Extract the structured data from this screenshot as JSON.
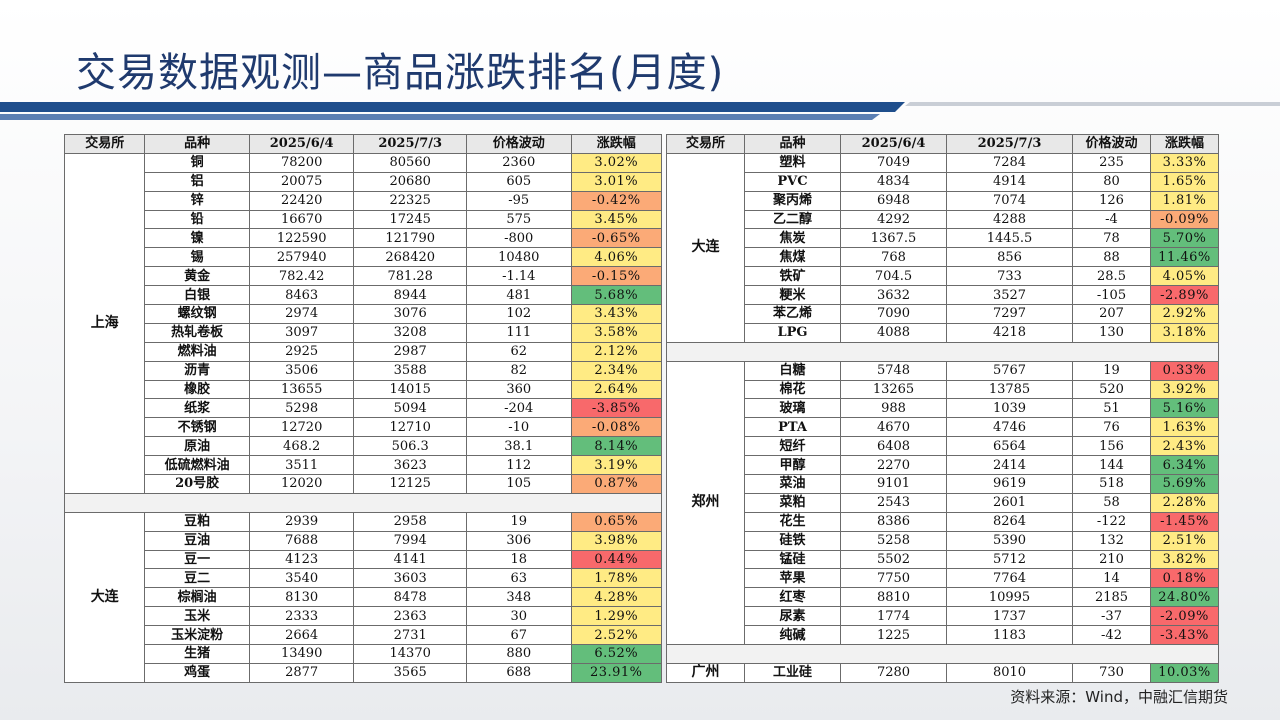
{
  "title": "交易数据观测—商品涨跌排名(月度)",
  "headers": [
    "交易所",
    "品种",
    "2025/6/4",
    "2025/7/3",
    "价格波动",
    "涨跌幅"
  ],
  "source": "资料来源：Wind，中融汇信期货",
  "colors": {
    "title": "#1f3a6e",
    "strong_up": "#63be7b",
    "weak_up": "#ffeb84",
    "weak_down": "#fbaa77",
    "strong_down": "#f8696b"
  },
  "left": {
    "groups": [
      {
        "exchange": "上海",
        "rows": [
          {
            "name": "铜",
            "d1": "78200",
            "d2": "80560",
            "chg": "2360",
            "pct": "3.02%",
            "v": 3.02
          },
          {
            "name": "铝",
            "d1": "20075",
            "d2": "20680",
            "chg": "605",
            "pct": "3.01%",
            "v": 3.01
          },
          {
            "name": "锌",
            "d1": "22420",
            "d2": "22325",
            "chg": "-95",
            "pct": "-0.42%",
            "v": -0.42
          },
          {
            "name": "铅",
            "d1": "16670",
            "d2": "17245",
            "chg": "575",
            "pct": "3.45%",
            "v": 3.45
          },
          {
            "name": "镍",
            "d1": "122590",
            "d2": "121790",
            "chg": "-800",
            "pct": "-0.65%",
            "v": -0.65
          },
          {
            "name": "锡",
            "d1": "257940",
            "d2": "268420",
            "chg": "10480",
            "pct": "4.06%",
            "v": 4.06
          },
          {
            "name": "黄金",
            "d1": "782.42",
            "d2": "781.28",
            "chg": "-1.14",
            "pct": "-0.15%",
            "v": -0.15
          },
          {
            "name": "白银",
            "d1": "8463",
            "d2": "8944",
            "chg": "481",
            "pct": "5.68%",
            "v": 5.68
          },
          {
            "name": "螺纹钢",
            "d1": "2974",
            "d2": "3076",
            "chg": "102",
            "pct": "3.43%",
            "v": 3.43
          },
          {
            "name": "热轧卷板",
            "d1": "3097",
            "d2": "3208",
            "chg": "111",
            "pct": "3.58%",
            "v": 3.58
          },
          {
            "name": "燃料油",
            "d1": "2925",
            "d2": "2987",
            "chg": "62",
            "pct": "2.12%",
            "v": 2.12
          },
          {
            "name": "沥青",
            "d1": "3506",
            "d2": "3588",
            "chg": "82",
            "pct": "2.34%",
            "v": 2.34
          },
          {
            "name": "橡胶",
            "d1": "13655",
            "d2": "14015",
            "chg": "360",
            "pct": "2.64%",
            "v": 2.64
          },
          {
            "name": "纸浆",
            "d1": "5298",
            "d2": "5094",
            "chg": "-204",
            "pct": "-3.85%",
            "v": -3.85
          },
          {
            "name": "不锈钢",
            "d1": "12720",
            "d2": "12710",
            "chg": "-10",
            "pct": "-0.08%",
            "v": -0.08
          },
          {
            "name": "原油",
            "d1": "468.2",
            "d2": "506.3",
            "chg": "38.1",
            "pct": "8.14%",
            "v": 8.14
          },
          {
            "name": "低硫燃料油",
            "d1": "3511",
            "d2": "3623",
            "chg": "112",
            "pct": "3.19%",
            "v": 3.19
          },
          {
            "name": "20号胶",
            "d1": "12020",
            "d2": "12125",
            "chg": "105",
            "pct": "0.87%",
            "v": 0.87
          }
        ]
      },
      {
        "blank": true
      },
      {
        "exchange": "大连",
        "rows": [
          {
            "name": "豆粕",
            "d1": "2939",
            "d2": "2958",
            "chg": "19",
            "pct": "0.65%",
            "v": 0.65
          },
          {
            "name": "豆油",
            "d1": "7688",
            "d2": "7994",
            "chg": "306",
            "pct": "3.98%",
            "v": 3.98
          },
          {
            "name": "豆一",
            "d1": "4123",
            "d2": "4141",
            "chg": "18",
            "pct": "0.44%",
            "v": 0.44
          },
          {
            "name": "豆二",
            "d1": "3540",
            "d2": "3603",
            "chg": "63",
            "pct": "1.78%",
            "v": 1.78
          },
          {
            "name": "棕榈油",
            "d1": "8130",
            "d2": "8478",
            "chg": "348",
            "pct": "4.28%",
            "v": 4.28
          },
          {
            "name": "玉米",
            "d1": "2333",
            "d2": "2363",
            "chg": "30",
            "pct": "1.29%",
            "v": 1.29
          },
          {
            "name": "玉米淀粉",
            "d1": "2664",
            "d2": "2731",
            "chg": "67",
            "pct": "2.52%",
            "v": 2.52
          },
          {
            "name": "生猪",
            "d1": "13490",
            "d2": "14370",
            "chg": "880",
            "pct": "6.52%",
            "v": 6.52
          },
          {
            "name": "鸡蛋",
            "d1": "2877",
            "d2": "3565",
            "chg": "688",
            "pct": "23.91%",
            "v": 23.91
          }
        ]
      }
    ]
  },
  "right": {
    "groups": [
      {
        "exchange": "大连",
        "rows": [
          {
            "name": "塑料",
            "d1": "7049",
            "d2": "7284",
            "chg": "235",
            "pct": "3.33%",
            "v": 3.33
          },
          {
            "name": "PVC",
            "d1": "4834",
            "d2": "4914",
            "chg": "80",
            "pct": "1.65%",
            "v": 1.65
          },
          {
            "name": "聚丙烯",
            "d1": "6948",
            "d2": "7074",
            "chg": "126",
            "pct": "1.81%",
            "v": 1.81
          },
          {
            "name": "乙二醇",
            "d1": "4292",
            "d2": "4288",
            "chg": "-4",
            "pct": "-0.09%",
            "v": -0.09
          },
          {
            "name": "焦炭",
            "d1": "1367.5",
            "d2": "1445.5",
            "chg": "78",
            "pct": "5.70%",
            "v": 5.7
          },
          {
            "name": "焦煤",
            "d1": "768",
            "d2": "856",
            "chg": "88",
            "pct": "11.46%",
            "v": 11.46
          },
          {
            "name": "铁矿",
            "d1": "704.5",
            "d2": "733",
            "chg": "28.5",
            "pct": "4.05%",
            "v": 4.05
          },
          {
            "name": "粳米",
            "d1": "3632",
            "d2": "3527",
            "chg": "-105",
            "pct": "-2.89%",
            "v": -2.89
          },
          {
            "name": "苯乙烯",
            "d1": "7090",
            "d2": "7297",
            "chg": "207",
            "pct": "2.92%",
            "v": 2.92
          },
          {
            "name": "LPG",
            "d1": "4088",
            "d2": "4218",
            "chg": "130",
            "pct": "3.18%",
            "v": 3.18
          }
        ]
      },
      {
        "blank": true
      },
      {
        "exchange": "郑州",
        "rows": [
          {
            "name": "白糖",
            "d1": "5748",
            "d2": "5767",
            "chg": "19",
            "pct": "0.33%",
            "v": 0.33
          },
          {
            "name": "棉花",
            "d1": "13265",
            "d2": "13785",
            "chg": "520",
            "pct": "3.92%",
            "v": 3.92
          },
          {
            "name": "玻璃",
            "d1": "988",
            "d2": "1039",
            "chg": "51",
            "pct": "5.16%",
            "v": 5.16
          },
          {
            "name": "PTA",
            "d1": "4670",
            "d2": "4746",
            "chg": "76",
            "pct": "1.63%",
            "v": 1.63
          },
          {
            "name": "短纤",
            "d1": "6408",
            "d2": "6564",
            "chg": "156",
            "pct": "2.43%",
            "v": 2.43
          },
          {
            "name": "甲醇",
            "d1": "2270",
            "d2": "2414",
            "chg": "144",
            "pct": "6.34%",
            "v": 6.34
          },
          {
            "name": "菜油",
            "d1": "9101",
            "d2": "9619",
            "chg": "518",
            "pct": "5.69%",
            "v": 5.69
          },
          {
            "name": "菜粕",
            "d1": "2543",
            "d2": "2601",
            "chg": "58",
            "pct": "2.28%",
            "v": 2.28
          },
          {
            "name": "花生",
            "d1": "8386",
            "d2": "8264",
            "chg": "-122",
            "pct": "-1.45%",
            "v": -1.45
          },
          {
            "name": "硅铁",
            "d1": "5258",
            "d2": "5390",
            "chg": "132",
            "pct": "2.51%",
            "v": 2.51
          },
          {
            "name": "锰硅",
            "d1": "5502",
            "d2": "5712",
            "chg": "210",
            "pct": "3.82%",
            "v": 3.82
          },
          {
            "name": "苹果",
            "d1": "7750",
            "d2": "7764",
            "chg": "14",
            "pct": "0.18%",
            "v": 0.18
          },
          {
            "name": "红枣",
            "d1": "8810",
            "d2": "10995",
            "chg": "2185",
            "pct": "24.80%",
            "v": 24.8
          },
          {
            "name": "尿素",
            "d1": "1774",
            "d2": "1737",
            "chg": "-37",
            "pct": "-2.09%",
            "v": -2.09
          },
          {
            "name": "纯碱",
            "d1": "1225",
            "d2": "1183",
            "chg": "-42",
            "pct": "-3.43%",
            "v": -3.43
          }
        ]
      },
      {
        "blank": true
      },
      {
        "exchange": "广州",
        "rows": [
          {
            "name": "工业硅",
            "d1": "7280",
            "d2": "8010",
            "chg": "730",
            "pct": "10.03%",
            "v": 10.03
          }
        ]
      }
    ]
  }
}
